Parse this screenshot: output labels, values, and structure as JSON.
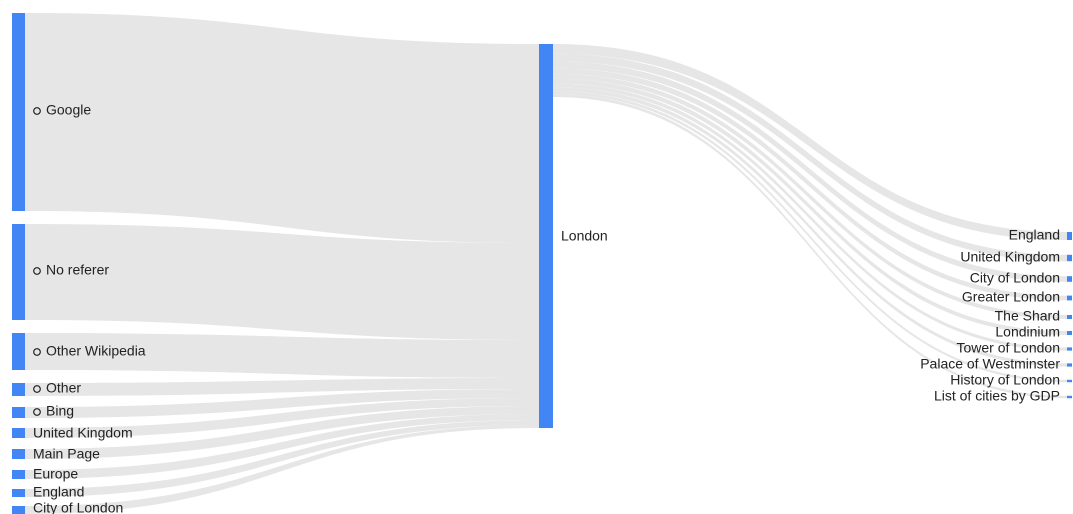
{
  "chart_data": {
    "type": "sankey",
    "colors": {
      "node": "#4285f4",
      "link": "#e6e6e6"
    },
    "center": "London",
    "sources": [
      {
        "name": "Google",
        "expandable": true
      },
      {
        "name": "No referer",
        "expandable": true
      },
      {
        "name": "Other Wikipedia",
        "expandable": true
      },
      {
        "name": "Other",
        "expandable": true
      },
      {
        "name": "Bing",
        "expandable": true
      },
      {
        "name": "United Kingdom",
        "expandable": false
      },
      {
        "name": "Main Page",
        "expandable": false
      },
      {
        "name": "Europe",
        "expandable": false
      },
      {
        "name": "England",
        "expandable": false
      },
      {
        "name": "City of London",
        "expandable": false
      }
    ],
    "destinations": [
      {
        "name": "England"
      },
      {
        "name": "United Kingdom"
      },
      {
        "name": "City of London"
      },
      {
        "name": "Greater London"
      },
      {
        "name": "The Shard"
      },
      {
        "name": "Londinium"
      },
      {
        "name": "Tower of London"
      },
      {
        "name": "Palace of Westminster"
      },
      {
        "name": "History of London"
      },
      {
        "name": "List of cities by GDP"
      }
    ]
  }
}
